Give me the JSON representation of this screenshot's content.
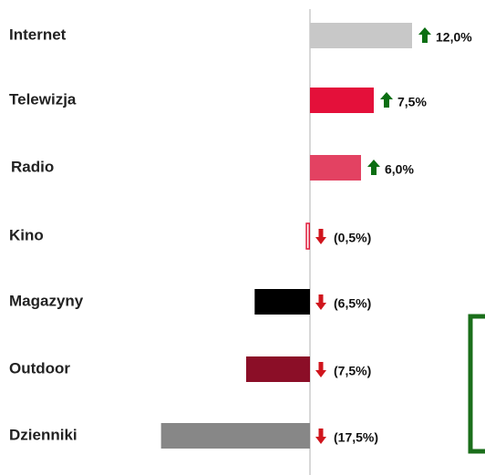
{
  "chart_data": {
    "type": "hbar",
    "categories": [
      "Internet",
      "Telewizja",
      "Radio",
      "Kino",
      "Magazyny",
      "Outdoor",
      "Dzienniki"
    ],
    "values": [
      12.0,
      7.5,
      6.0,
      -0.5,
      -6.5,
      -7.5,
      -17.5
    ],
    "value_labels": [
      "12,0%",
      "7,5%",
      "6,0%",
      "(0,5%)",
      "(6,5%)",
      "(7,5%)",
      "(17,5%)"
    ],
    "colors": [
      "#c8c8c8",
      "#e4103a",
      "#e34262",
      "#e01b3a",
      "#000000",
      "#8b0e27",
      "#878787"
    ],
    "up_color": "#0b6e12",
    "down_color": "#d0151d",
    "xlim": [
      -18,
      12
    ]
  }
}
